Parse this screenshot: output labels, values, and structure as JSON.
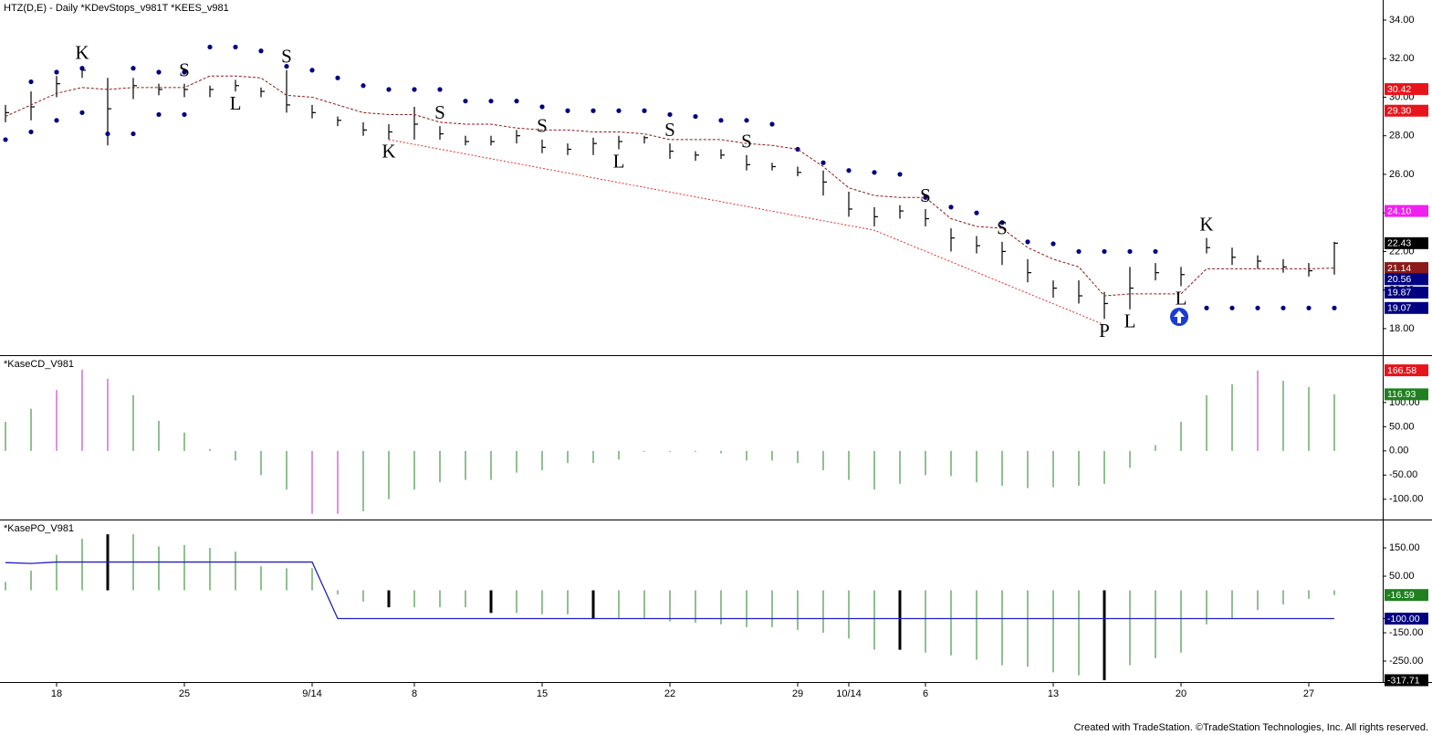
{
  "chart_data": [
    {
      "type": "hlc",
      "title": "HTZ(D,E) - Daily  *KDevStops_v981T  *KEES_v981",
      "categories": [
        null,
        null,
        "18",
        null,
        null,
        null,
        null,
        "25",
        null,
        null,
        null,
        null,
        "9/14",
        null,
        null,
        null,
        "8",
        null,
        null,
        null,
        null,
        "15",
        null,
        null,
        null,
        null,
        "22",
        null,
        null,
        null,
        null,
        "29",
        null,
        "10/14",
        null,
        null,
        "6",
        null,
        null,
        null,
        null,
        "13",
        null,
        null,
        null,
        null,
        "20",
        null,
        null,
        null,
        null,
        "27",
        null
      ],
      "high": [
        29.6,
        30.3,
        31.1,
        31.6,
        31.0,
        31.0,
        30.7,
        30.7,
        30.6,
        30.9,
        30.5,
        31.4,
        29.6,
        29.0,
        28.7,
        28.6,
        29.5,
        28.5,
        28.0,
        28.0,
        28.3,
        27.8,
        27.6,
        27.9,
        28.0,
        28.0,
        27.6,
        27.2,
        27.3,
        27.0,
        26.6,
        26.4,
        26.2,
        25.1,
        24.3,
        24.4,
        24.2,
        23.2,
        22.8,
        22.5,
        21.6,
        20.5,
        20.5,
        19.9,
        21.2,
        21.4,
        21.2,
        22.7,
        22.2,
        21.8,
        21.6,
        21.4,
        22.5
      ],
      "low": [
        28.7,
        28.8,
        30.0,
        31.0,
        27.5,
        29.9,
        30.1,
        30.0,
        30.0,
        30.3,
        30.0,
        29.2,
        28.9,
        28.5,
        28.0,
        27.8,
        27.8,
        27.8,
        27.5,
        27.5,
        27.6,
        27.1,
        27.0,
        27.0,
        27.3,
        27.6,
        26.8,
        26.7,
        26.8,
        26.2,
        26.2,
        25.9,
        24.9,
        23.8,
        23.3,
        23.7,
        23.3,
        22.0,
        21.9,
        21.3,
        20.4,
        19.6,
        19.3,
        18.5,
        19.0,
        20.5,
        20.2,
        21.9,
        21.3,
        21.1,
        20.9,
        20.7,
        20.8
      ],
      "close": [
        29.2,
        29.5,
        30.7,
        31.4,
        29.4,
        30.6,
        30.4,
        30.4,
        30.4,
        30.6,
        30.3,
        29.6,
        29.2,
        28.8,
        28.3,
        28.2,
        28.6,
        28.1,
        27.7,
        27.7,
        28.0,
        27.4,
        27.3,
        27.6,
        27.7,
        27.9,
        27.2,
        27.0,
        27.0,
        26.5,
        26.4,
        26.1,
        25.6,
        24.2,
        23.8,
        24.1,
        23.7,
        22.7,
        22.3,
        22.0,
        20.9,
        20.1,
        19.7,
        19.3,
        20.1,
        20.9,
        20.8,
        22.2,
        21.7,
        21.5,
        21.2,
        21.0,
        22.43
      ],
      "bar_color": "#000000",
      "series": [
        {
          "style": "dots",
          "color": "#000080",
          "values": [
            null,
            30.8,
            31.3,
            31.5,
            null,
            31.5,
            31.3,
            31.3,
            32.6,
            32.6,
            32.4,
            31.6,
            31.4,
            31.0,
            30.6,
            30.4,
            30.4,
            30.4,
            29.8,
            29.8,
            29.8,
            29.5,
            29.3,
            29.3,
            29.3,
            29.3,
            29.1,
            29.0,
            28.8,
            28.8,
            28.6,
            27.3,
            26.6,
            26.2,
            26.1,
            26.0,
            24.8,
            24.3,
            24.0,
            23.5,
            22.5,
            22.4,
            22.0,
            22.0,
            22.0,
            22.0,
            null,
            null,
            null,
            null,
            null,
            null,
            null
          ]
        },
        {
          "style": "dots",
          "color": "#000080",
          "values": [
            27.8,
            28.2,
            28.8,
            29.2,
            28.1,
            28.1,
            29.1,
            29.1,
            null,
            null,
            null,
            null,
            null,
            null,
            null,
            null,
            null,
            null,
            null,
            null,
            null,
            null,
            null,
            null,
            null,
            null,
            null,
            null,
            null,
            null,
            null,
            null,
            null,
            null,
            null,
            null,
            null,
            null,
            null,
            null,
            null,
            null,
            null,
            null,
            null,
            null,
            null,
            19.07,
            19.07,
            19.07,
            19.07,
            19.07,
            19.07
          ]
        },
        {
          "style": "dashed",
          "color": "#8b1a1a",
          "values": [
            29.0,
            29.6,
            30.2,
            30.5,
            30.4,
            30.5,
            30.5,
            30.5,
            31.1,
            31.1,
            31.0,
            30.1,
            30.0,
            29.6,
            29.2,
            29.1,
            29.1,
            28.7,
            28.6,
            28.6,
            28.4,
            28.3,
            28.3,
            28.2,
            28.2,
            28.1,
            27.8,
            27.8,
            27.8,
            27.6,
            27.5,
            27.3,
            26.4,
            25.3,
            24.9,
            24.8,
            24.8,
            23.7,
            23.3,
            23.2,
            22.2,
            21.6,
            21.2,
            19.7,
            19.8,
            19.8,
            19.8,
            21.1,
            21.1,
            21.1,
            21.1,
            21.1,
            21.14
          ]
        }
      ],
      "trendline": {
        "color": "#e03030",
        "x": [
          15,
          34,
          43
        ],
        "values": [
          27.8,
          23.1,
          18.2
        ]
      },
      "signals": [
        null,
        null,
        null,
        {
          "text": "K",
          "color": "#808080",
          "side": "above"
        },
        null,
        null,
        null,
        {
          "text": "S",
          "color": "#f0a030",
          "side": "above"
        },
        null,
        {
          "text": "L",
          "color": "#2030d0",
          "side": "below"
        },
        null,
        {
          "text": "S",
          "color": "#e02020",
          "side": "above"
        },
        null,
        null,
        null,
        {
          "text": "K",
          "color": "#808080",
          "side": "below"
        },
        null,
        {
          "text": "S",
          "color": "#e020e0",
          "side": "above"
        },
        null,
        null,
        null,
        {
          "text": "S",
          "color": "#e020e0",
          "side": "above"
        },
        null,
        null,
        {
          "text": "L",
          "color": "#30d030",
          "side": "below"
        },
        null,
        {
          "text": "S",
          "color": "#e020e0",
          "side": "above"
        },
        null,
        null,
        {
          "text": "S",
          "color": "#e020e0",
          "side": "above"
        },
        null,
        null,
        null,
        null,
        null,
        null,
        {
          "text": "S",
          "color": "#e020e0",
          "side": "above"
        },
        null,
        null,
        {
          "text": "S",
          "color": "#e020e0",
          "side": "above"
        },
        null,
        null,
        null,
        {
          "text": "P",
          "color": "#30d030",
          "side": "below"
        },
        {
          "text": "L",
          "color": "#30d030",
          "side": "below"
        },
        null,
        {
          "text": "L",
          "color": "#2030d0",
          "side": "below"
        },
        {
          "text": "K",
          "color": "#808080",
          "side": "above"
        },
        null,
        null,
        null,
        null,
        null
      ],
      "ylim": [
        16.67,
        35.04
      ],
      "yticks": [
        {
          "value": 34,
          "label": "34.00"
        },
        {
          "value": 32,
          "label": "32.00"
        },
        {
          "value": 30,
          "label": "30.00"
        },
        {
          "value": 28,
          "label": "28.00"
        },
        {
          "value": 26,
          "label": "26.00"
        },
        {
          "value": 24,
          "label": "24.00"
        },
        {
          "value": 22,
          "label": "22.00"
        },
        {
          "value": 20,
          "label": "20.00"
        },
        {
          "value": 18,
          "label": "18.00"
        }
      ],
      "markers": [
        {
          "value": 30.42,
          "color": "#e8141c"
        },
        {
          "value": 29.3,
          "label": "29.30",
          "color": "#e8141c"
        },
        {
          "value": 24.1,
          "label": "24.10",
          "color": "#f020f0"
        },
        {
          "value": 22.43,
          "color": "#000000"
        },
        {
          "value": 21.14,
          "color": "#8b1a1a"
        },
        {
          "value": 20.56,
          "color": "#000080"
        },
        {
          "value": 19.87,
          "color": "#000080"
        },
        {
          "value": 19.07,
          "color": "#000080"
        }
      ]
    },
    {
      "type": "bar",
      "title": "*KaseCD_V981",
      "series": [
        {
          "style": "bar",
          "color": "#208020",
          "values": [
            60,
            87,
            null,
            null,
            null,
            115,
            62,
            38,
            4,
            -20,
            -50,
            -80,
            null,
            null,
            -125,
            -100,
            -80,
            -65,
            -60,
            -60,
            -45,
            -40,
            -25,
            -25,
            -18,
            -2,
            -2,
            -2,
            -5,
            -20,
            -20,
            -25,
            -40,
            -60,
            -80,
            -68,
            -50,
            -52,
            -65,
            -72,
            -77,
            -75,
            -72,
            -68,
            -35,
            12,
            60,
            115,
            138,
            null,
            145,
            132,
            116.93
          ]
        },
        {
          "style": "bar",
          "color": "#c020c0",
          "values": [
            null,
            null,
            126,
            168,
            149,
            null,
            null,
            null,
            null,
            null,
            null,
            null,
            -130,
            -130,
            null,
            null,
            null,
            null,
            null,
            null,
            null,
            null,
            null,
            null,
            null,
            null,
            null,
            null,
            null,
            null,
            null,
            null,
            null,
            null,
            null,
            null,
            null,
            null,
            null,
            null,
            null,
            null,
            null,
            null,
            null,
            null,
            null,
            null,
            null,
            166.58,
            null,
            null,
            null
          ]
        }
      ],
      "ylim": [
        -140,
        196
      ],
      "yticks": [
        {
          "value": 100,
          "label": "100.00"
        },
        {
          "value": 50,
          "label": "50.00"
        },
        {
          "value": 0,
          "label": "0.00"
        },
        {
          "value": -50,
          "label": "-50.00"
        },
        {
          "value": -100,
          "label": "-100.00"
        }
      ],
      "markers": [
        {
          "value": 166.58,
          "color": "#e8141c"
        },
        {
          "value": 116.93,
          "color": "#208020"
        }
      ]
    },
    {
      "type": "bar",
      "title": "*KasePO_V981",
      "series": [
        {
          "style": "bar",
          "color": "#208020",
          "values": [
            30,
            70,
            125,
            182,
            null,
            198,
            155,
            160,
            150,
            137,
            85,
            78,
            78,
            -15,
            -40,
            null,
            -60,
            -60,
            -60,
            null,
            -80,
            -85,
            -85,
            null,
            -100,
            -100,
            -110,
            -115,
            -120,
            -130,
            -130,
            -140,
            -150,
            -170,
            -210,
            null,
            -220,
            -230,
            -245,
            -265,
            -270,
            -290,
            -300,
            null,
            -265,
            -240,
            -220,
            -120,
            -100,
            -70,
            -50,
            -30,
            -16.59
          ]
        },
        {
          "style": "bar",
          "color": "#000000",
          "width": 3,
          "values": [
            null,
            null,
            null,
            null,
            198,
            null,
            null,
            null,
            null,
            null,
            null,
            null,
            null,
            null,
            null,
            -60,
            null,
            null,
            null,
            -80,
            null,
            null,
            null,
            -100,
            null,
            null,
            null,
            null,
            null,
            null,
            null,
            null,
            null,
            null,
            null,
            -210,
            null,
            null,
            null,
            null,
            null,
            null,
            null,
            -317.71,
            null,
            null,
            null,
            null,
            null,
            null,
            null,
            null,
            null
          ]
        },
        {
          "style": "line",
          "color": "#2020c0",
          "values": [
            98,
            95,
            100,
            100,
            100,
            100,
            100,
            100,
            100,
            100,
            100,
            100,
            100,
            -100,
            -100,
            -100,
            -100,
            -100,
            -100,
            -100,
            -100,
            -100,
            -100,
            -100,
            -100,
            -100,
            -100,
            -100,
            -100,
            -100,
            -100,
            -100,
            -100,
            -100,
            -100,
            -100,
            -100,
            -100,
            -100,
            -100,
            -100,
            -100,
            -100,
            -100,
            -100,
            -100,
            -100,
            -100,
            -100,
            -100,
            -100,
            -100,
            -100
          ]
        }
      ],
      "ylim": [
        -321,
        247
      ],
      "yticks": [
        {
          "value": 150,
          "label": "150.00"
        },
        {
          "value": 50,
          "label": "50.00"
        },
        {
          "value": -100,
          "label": "-100.00"
        },
        {
          "value": -150,
          "label": "-150.00"
        },
        {
          "value": -250,
          "label": "-250.00"
        }
      ],
      "markers": [
        {
          "value": -16.59,
          "color": "#208020"
        },
        {
          "value": -100,
          "label": "-100.00",
          "color": "#000080"
        },
        {
          "value": -317.71,
          "color": "#000000"
        }
      ]
    }
  ],
  "footer": "Created with TradeStation. ©TradeStation Technologies, Inc. All rights reserved."
}
